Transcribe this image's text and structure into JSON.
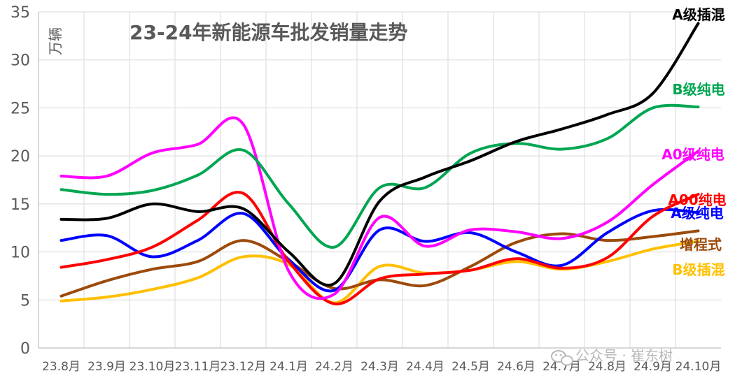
{
  "chart_data": {
    "type": "line",
    "title": "23-24年新能源车批发销量走势",
    "ylabel": "万辆",
    "xlabel": "",
    "ylim": [
      0,
      35
    ],
    "yticks": [
      0,
      5,
      10,
      15,
      20,
      25,
      30,
      35
    ],
    "grid": true,
    "legend": "labels at line ends (right)",
    "categories": [
      "23.8月",
      "23.9月",
      "23.10月",
      "23.11月",
      "23.12月",
      "24.1月",
      "24.2月",
      "24.3月",
      "24.4月",
      "24.5月",
      "24.6月",
      "24.7月",
      "24.8月",
      "24.9月",
      "24.10月"
    ],
    "series": [
      {
        "name": "A级插混",
        "color": "#000000",
        "values": [
          13.4,
          13.5,
          15.0,
          14.2,
          14.5,
          10.0,
          6.7,
          15.3,
          17.8,
          19.5,
          21.5,
          22.8,
          24.3,
          26.5,
          33.8
        ]
      },
      {
        "name": "B级纯电",
        "color": "#00A651",
        "values": [
          16.5,
          16.0,
          16.4,
          18.0,
          20.6,
          15.0,
          10.5,
          16.7,
          16.7,
          20.3,
          21.3,
          20.7,
          21.8,
          25.0,
          25.1
        ]
      },
      {
        "name": "A0级纯电",
        "color": "#FF00FF",
        "values": [
          17.9,
          17.9,
          20.3,
          21.2,
          23.3,
          8.0,
          5.6,
          13.6,
          10.6,
          12.3,
          12.1,
          11.4,
          13.1,
          17.0,
          20.5
        ]
      },
      {
        "name": "A00纯电",
        "color": "#FF0000",
        "values": [
          8.4,
          9.2,
          10.5,
          13.3,
          16.1,
          9.0,
          4.6,
          7.2,
          7.7,
          8.1,
          9.3,
          8.3,
          9.4,
          13.7,
          16.0
        ]
      },
      {
        "name": "A级纯电",
        "color": "#0000FF",
        "values": [
          11.2,
          11.7,
          9.5,
          11.2,
          14.0,
          9.2,
          6.0,
          12.3,
          11.1,
          12.0,
          10.0,
          8.6,
          12.0,
          14.3,
          14.1
        ]
      },
      {
        "name": "增程式",
        "color": "#9C4A0A",
        "values": [
          5.4,
          7.0,
          8.2,
          9.0,
          11.2,
          9.0,
          6.2,
          7.1,
          6.5,
          8.5,
          11.0,
          11.9,
          11.2,
          11.6,
          12.2
        ]
      },
      {
        "name": "B级插混",
        "color": "#FFC000",
        "values": [
          4.9,
          5.3,
          6.1,
          7.3,
          9.5,
          8.7,
          4.7,
          8.5,
          7.8,
          8.1,
          9.0,
          8.2,
          9.0,
          10.3,
          11.1
        ]
      }
    ]
  },
  "watermark": "公众号 · 崔东树"
}
